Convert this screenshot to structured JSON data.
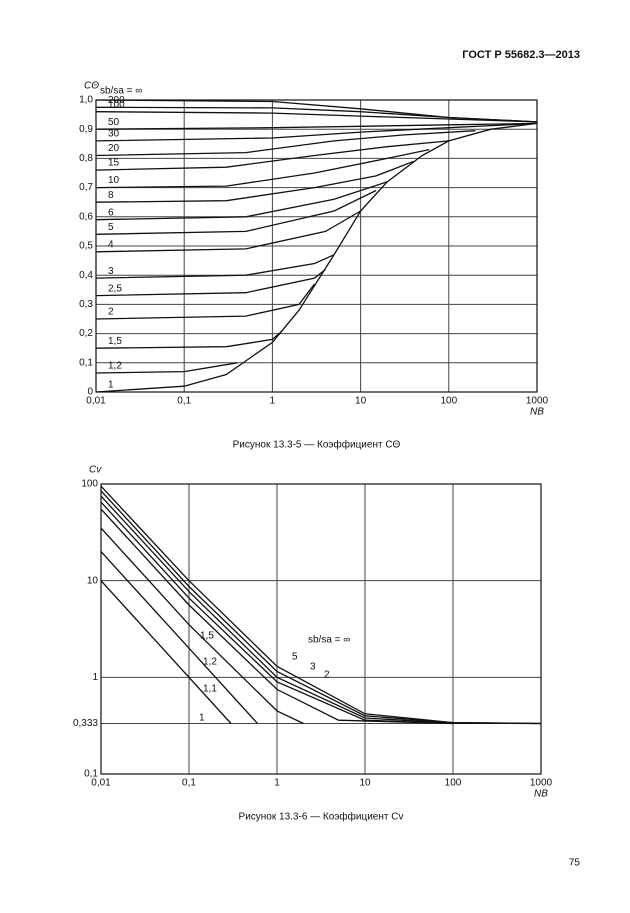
{
  "header": "ГОСТ Р 55682.3—2013",
  "page_number": "75",
  "chart_data": [
    {
      "type": "line",
      "title": "Рисунок 13.3-5 — Коэффициент CΘ",
      "y_label": "CΘ",
      "x_label": "NB",
      "x_log": true,
      "y_log": false,
      "grid": true,
      "color": "#111",
      "xlim": [
        0.01,
        1000
      ],
      "ylim": [
        0,
        1.0
      ],
      "xticks": [
        {
          "value": 0.01,
          "label": "0,01"
        },
        {
          "value": 0.1,
          "label": "0,1"
        },
        1,
        10,
        100,
        1000
      ],
      "yticks": [
        0,
        {
          "value": 0.1,
          "label": "0,1"
        },
        {
          "value": 0.2,
          "label": "0,2"
        },
        {
          "value": 0.3,
          "label": "0,3"
        },
        {
          "value": 0.4,
          "label": "0,4"
        },
        {
          "value": 0.5,
          "label": "0,5"
        },
        {
          "value": 0.6,
          "label": "0,6"
        },
        {
          "value": 0.7,
          "label": "0,7"
        },
        {
          "value": 0.8,
          "label": "0,8"
        },
        {
          "value": 0.9,
          "label": "0,9"
        },
        {
          "value": 1.0,
          "label": "1,0"
        }
      ],
      "series": [
        {
          "name": "sb/sa = ∞",
          "x": [
            0.01,
            1,
            10,
            100,
            1000
          ],
          "values": [
            1.0,
            0.995,
            0.97,
            0.94,
            0.925
          ]
        },
        {
          "name": "200",
          "x": [
            0.01,
            1,
            10,
            100,
            1000
          ],
          "values": [
            0.975,
            0.973,
            0.96,
            0.94,
            0.925
          ]
        },
        {
          "name": "100",
          "x": [
            0.01,
            1,
            10,
            100,
            1000
          ],
          "values": [
            0.96,
            0.955,
            0.945,
            0.935,
            0.925
          ]
        },
        {
          "name": "50",
          "x": [
            0.01,
            1,
            10,
            100,
            1000
          ],
          "values": [
            0.9,
            0.905,
            0.91,
            0.915,
            0.92
          ]
        },
        {
          "name": "30",
          "x": [
            0.01,
            1,
            10,
            100,
            1000
          ],
          "values": [
            0.86,
            0.87,
            0.89,
            0.905,
            0.92
          ]
        },
        {
          "name": "20",
          "x": [
            0.01,
            0.5,
            5,
            30,
            200
          ],
          "values": [
            0.81,
            0.82,
            0.86,
            0.88,
            0.895
          ]
        },
        {
          "name": "15",
          "x": [
            0.01,
            0.3,
            3,
            20,
            100
          ],
          "values": [
            0.76,
            0.77,
            0.81,
            0.84,
            0.86
          ]
        },
        {
          "name": "10",
          "x": [
            0.01,
            0.3,
            3,
            20,
            60
          ],
          "values": [
            0.7,
            0.705,
            0.75,
            0.8,
            0.83
          ]
        },
        {
          "name": "8",
          "x": [
            0.01,
            0.3,
            3,
            15,
            40
          ],
          "values": [
            0.65,
            0.655,
            0.7,
            0.74,
            0.79
          ]
        },
        {
          "name": "6",
          "x": [
            0.01,
            0.5,
            5,
            20
          ],
          "values": [
            0.59,
            0.6,
            0.66,
            0.72
          ]
        },
        {
          "name": "5",
          "x": [
            0.01,
            0.5,
            5,
            15
          ],
          "values": [
            0.54,
            0.55,
            0.62,
            0.69
          ]
        },
        {
          "name": "4",
          "x": [
            0.01,
            0.5,
            4,
            10
          ],
          "values": [
            0.48,
            0.49,
            0.55,
            0.62
          ]
        },
        {
          "name": "3",
          "x": [
            0.01,
            0.5,
            3,
            5
          ],
          "values": [
            0.39,
            0.4,
            0.44,
            0.47
          ]
        },
        {
          "name": "2,5",
          "x": [
            0.01,
            0.5,
            3,
            4
          ],
          "values": [
            0.33,
            0.34,
            0.39,
            0.42
          ]
        },
        {
          "name": "2",
          "x": [
            0.01,
            0.5,
            2,
            3
          ],
          "values": [
            0.25,
            0.26,
            0.3,
            0.37
          ]
        },
        {
          "name": "1,5",
          "x": [
            0.01,
            0.3,
            1,
            1.3
          ],
          "values": [
            0.15,
            0.155,
            0.18,
            0.21
          ]
        },
        {
          "name": "1,2",
          "x": [
            0.01,
            0.1,
            0.4
          ],
          "values": [
            0.065,
            0.07,
            0.1
          ]
        },
        {
          "name": "1",
          "x": [
            0.01,
            0.1,
            0.3,
            1,
            2,
            5,
            10,
            20,
            50,
            100,
            300,
            1000
          ],
          "values": [
            0,
            0.02,
            0.06,
            0.17,
            0.28,
            0.47,
            0.62,
            0.72,
            0.81,
            0.86,
            0.9,
            0.92
          ]
        }
      ]
    },
    {
      "type": "line",
      "title": "Рисунок 13.3-6 — Коэффициент Cv",
      "y_label": "Cv",
      "x_label": "NB",
      "x_log": true,
      "y_log": true,
      "grid": true,
      "color": "#111",
      "xlim": [
        0.01,
        1000
      ],
      "ylim": [
        0.1,
        100
      ],
      "xticks": [
        {
          "value": 0.01,
          "label": "0,01"
        },
        {
          "value": 0.1,
          "label": "0,1"
        },
        1,
        10,
        100,
        1000
      ],
      "yticks": [
        {
          "value": 0.1,
          "label": "0,1"
        },
        {
          "value": 0.333,
          "label": "0,333"
        },
        1,
        10,
        100
      ],
      "series": [
        {
          "name": "sb/sa = ∞",
          "x": [
            0.01,
            0.1,
            1,
            10,
            100,
            1000
          ],
          "values": [
            95,
            10,
            1.3,
            0.42,
            0.34,
            0.333
          ]
        },
        {
          "name": "5",
          "x": [
            0.01,
            0.1,
            1,
            10,
            100,
            1000
          ],
          "values": [
            85,
            8.7,
            1.15,
            0.4,
            0.34,
            0.333
          ]
        },
        {
          "name": "3",
          "x": [
            0.01,
            0.1,
            1,
            10,
            100,
            1000
          ],
          "values": [
            75,
            7.7,
            1.0,
            0.38,
            0.335,
            0.333
          ]
        },
        {
          "name": "2",
          "x": [
            0.01,
            0.1,
            1,
            10,
            100
          ],
          "values": [
            65,
            6.6,
            0.9,
            0.36,
            0.333
          ]
        },
        {
          "name": "1,5",
          "x": [
            0.01,
            0.1,
            1,
            5,
            100
          ],
          "values": [
            55,
            5.6,
            0.75,
            0.36,
            0.333
          ]
        },
        {
          "name": "1,2",
          "x": [
            0.01,
            0.1,
            1,
            2
          ],
          "values": [
            35,
            3.5,
            0.45,
            0.333
          ]
        },
        {
          "name": "1,1",
          "x": [
            0.01,
            0.1,
            0.6
          ],
          "values": [
            20,
            2,
            0.333
          ]
        },
        {
          "name": "1",
          "x": [
            0.01,
            0.3
          ],
          "values": [
            10,
            0.333
          ]
        }
      ]
    }
  ]
}
